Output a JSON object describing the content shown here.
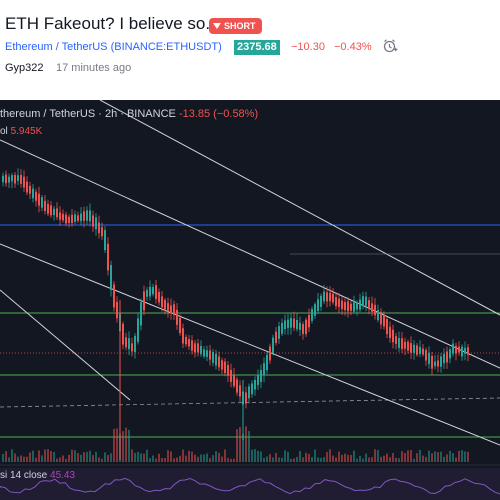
{
  "idea": {
    "title": "ETH Fakeout? I believe so.",
    "badge": "SHORT",
    "symbol": "Ethereum / TetherUS (BINANCE:ETHUSDT)",
    "price": "2375.68",
    "change": "−10.30",
    "change_pct": "−0.43%",
    "author": "Gyp322",
    "time": "17 minutes ago"
  },
  "chart": {
    "legend_symbol": "thereum / TetherUS · 2h · BINANCE",
    "legend_change": "-13.85 (−0.58%)",
    "volume_label": "ol",
    "volume_value": "5.945K",
    "rsi_label": "si 14 close",
    "rsi_value": "45.43"
  },
  "colors": {
    "bg": "#131722",
    "up": "#26a69a",
    "down": "#ef5350",
    "blue_line": "#2962ff",
    "green_line": "#4caf50",
    "rsi": "#7e57c2",
    "link": "#2962ff"
  },
  "icons": {
    "alert": "alarm-clock-plus-icon",
    "short": "arrow-down-icon"
  }
}
